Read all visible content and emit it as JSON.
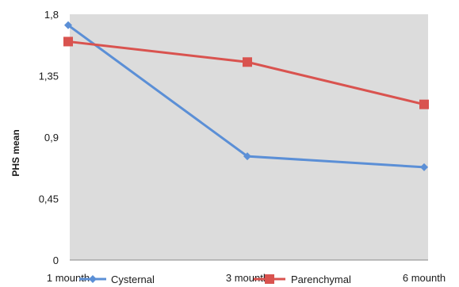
{
  "chart_data": {
    "type": "line",
    "title": "",
    "xlabel": "",
    "ylabel": "PHS mean",
    "categories": [
      "1 mounth",
      "3 mounth",
      "6 mounth"
    ],
    "series": [
      {
        "name": "Cysternal",
        "values": [
          1.72,
          0.76,
          0.68
        ],
        "color": "#5b8fd6",
        "marker": "diamond"
      },
      {
        "name": "Parenchymal",
        "values": [
          1.6,
          1.45,
          1.14
        ],
        "color": "#d9534f",
        "marker": "square"
      }
    ],
    "ylim": [
      0,
      1.8
    ],
    "yticks": [
      0,
      0.45,
      0.9,
      1.35,
      1.8
    ],
    "ytick_labels": [
      "0",
      "0,45",
      "0,9",
      "1,35",
      "1,8"
    ],
    "grid": false,
    "plot_background": "#dcdcdc",
    "legend_placement": "bottom-inline"
  }
}
